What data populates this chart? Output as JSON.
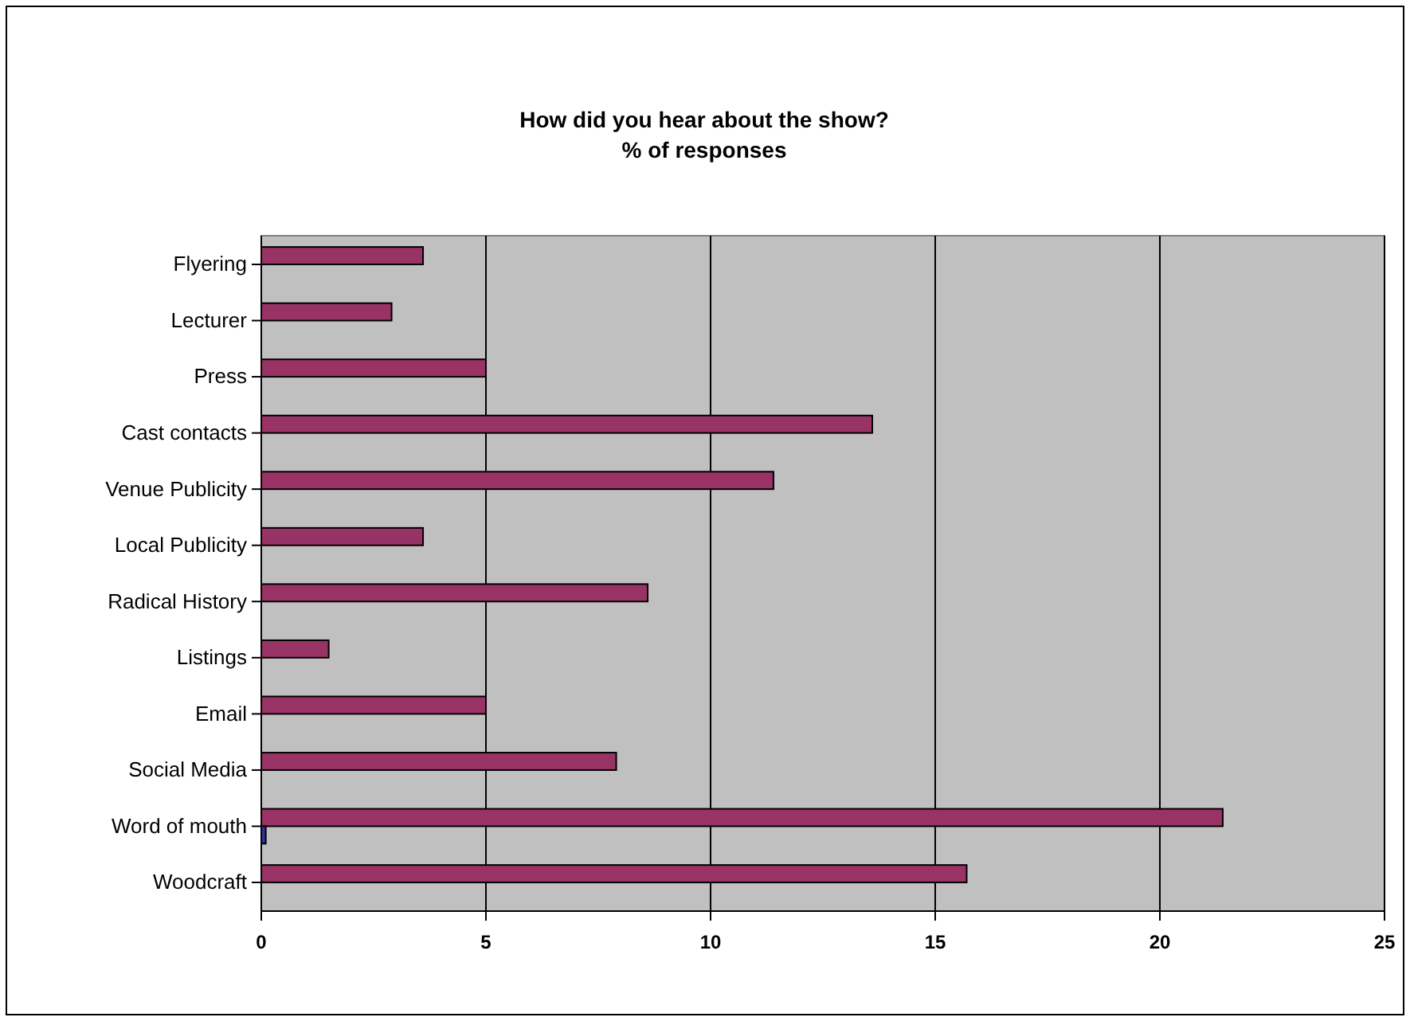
{
  "chart_data": {
    "type": "bar",
    "orientation": "horizontal",
    "title": "How did you hear about the show?\n% of responses",
    "categories": [
      "Flyering",
      "Lecturer",
      "Press",
      "Cast contacts",
      "Venue Publicity",
      "Local Publicity",
      "Radical History",
      "Listings",
      "Email",
      "Social Media",
      "Word of mouth",
      "Woodcraft"
    ],
    "series": [
      {
        "color": "#993366",
        "values": [
          3.6,
          2.9,
          5.0,
          13.6,
          11.4,
          3.6,
          8.6,
          1.5,
          5.0,
          7.9,
          21.4,
          15.7
        ]
      },
      {
        "color": "#333399",
        "values": [
          null,
          null,
          null,
          null,
          null,
          null,
          null,
          null,
          null,
          null,
          0.1,
          null
        ]
      }
    ],
    "xlim": [
      0,
      25
    ],
    "xticks": [
      0,
      5,
      10,
      15,
      20,
      25
    ],
    "grid": "x"
  }
}
